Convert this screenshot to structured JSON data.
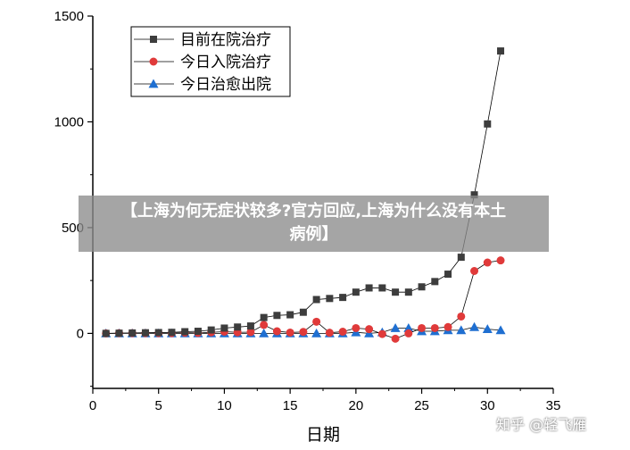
{
  "chart_data": {
    "type": "line",
    "xlabel": "日期",
    "ylabel": "",
    "xlim": [
      0,
      35
    ],
    "ylim": [
      -260,
      1500
    ],
    "xticks": [
      0,
      5,
      10,
      15,
      20,
      25,
      30,
      35
    ],
    "yticks": [
      0,
      500,
      1000,
      1500
    ],
    "legend_position": "top-left",
    "grid": false,
    "x": [
      1,
      2,
      3,
      4,
      5,
      6,
      7,
      8,
      9,
      10,
      11,
      12,
      13,
      14,
      15,
      16,
      17,
      18,
      19,
      20,
      21,
      22,
      23,
      24,
      25,
      26,
      27,
      28,
      29,
      30,
      31
    ],
    "series": [
      {
        "name": "目前在院治疗",
        "marker": "square",
        "color": "#3d3d3d",
        "values": [
          0,
          1,
          2,
          3,
          4,
          5,
          8,
          10,
          16,
          25,
          30,
          35,
          75,
          85,
          88,
          100,
          160,
          165,
          170,
          195,
          215,
          215,
          195,
          195,
          220,
          245,
          280,
          360,
          655,
          990,
          1335
        ]
      },
      {
        "name": "今日入院治疗",
        "marker": "circle",
        "color": "#e03a3a",
        "values": [
          0,
          1,
          1,
          1,
          1,
          1,
          3,
          2,
          5,
          8,
          5,
          6,
          40,
          10,
          4,
          7,
          55,
          3,
          8,
          25,
          20,
          -3,
          -25,
          0,
          25,
          25,
          30,
          80,
          295,
          335,
          345
        ]
      },
      {
        "name": "今日治愈出院",
        "marker": "triangle",
        "color": "#1f6fd1",
        "values": [
          0,
          0,
          0,
          0,
          0,
          0,
          0,
          0,
          0,
          0,
          0,
          0,
          0,
          0,
          0,
          0,
          0,
          0,
          0,
          5,
          0,
          5,
          25,
          25,
          10,
          10,
          15,
          15,
          30,
          20,
          15
        ]
      }
    ]
  },
  "banner": {
    "line1": "【上海为何无症状较多?官方回应,上海为什么没有本土",
    "line2": "病例】"
  },
  "watermark": "知乎 @轻飞雁"
}
